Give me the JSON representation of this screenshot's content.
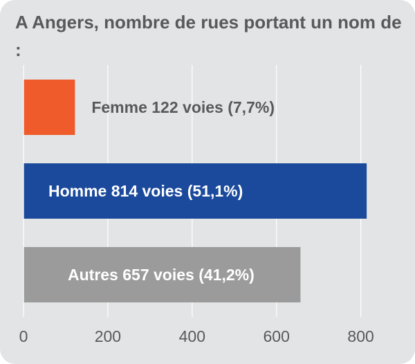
{
  "chart_data": {
    "type": "bar",
    "orientation": "horizontal",
    "title": "A Angers, nombre de rues portant un nom de :",
    "categories": [
      "Femme",
      "Homme",
      "Autres"
    ],
    "values": [
      122,
      814,
      657
    ],
    "labels": [
      "Femme 122 voies (7,7%)",
      "Homme 814 voies (51,1%)",
      "Autres 657 voies (41,2%)"
    ],
    "colors": [
      "#ef5b2b",
      "#1b4a9c",
      "#9b9b9b"
    ],
    "label_colors": [
      "#58595b",
      "#ffffff",
      "#ffffff"
    ],
    "label_inside": [
      false,
      true,
      true
    ],
    "xlim": [
      0,
      820
    ],
    "xticks": [
      0,
      200,
      400,
      600,
      800
    ],
    "xtick_labels": [
      "0",
      "200",
      "400",
      "600",
      "800"
    ],
    "grid": true
  }
}
